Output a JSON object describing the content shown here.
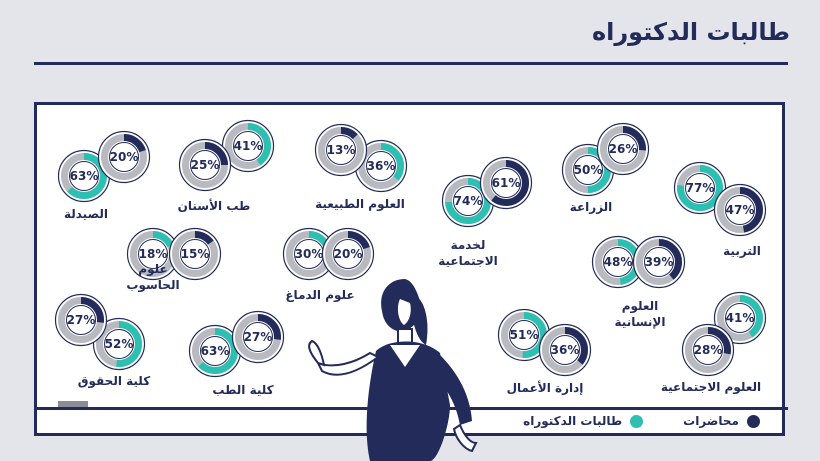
{
  "page": {
    "title": "طالبات الدكتوراه"
  },
  "legend": {
    "items": [
      {
        "label": "محاضرات",
        "color": "#222b5a"
      },
      {
        "label": "طالبات الدكتوراه",
        "color": "#2dbfb1"
      }
    ]
  },
  "colors": {
    "navy": "#222b5a",
    "teal": "#2dbfb1",
    "track": "#b9bac0"
  },
  "chart_data": {
    "type": "pie",
    "units": "%",
    "series": [
      {
        "name": "محاضرات",
        "color": "#222b5a"
      },
      {
        "name": "طالبات الدكتوراه",
        "color": "#2dbfb1"
      }
    ],
    "categories": [
      {
        "label": "الصيدلة",
        "lines": [
          "الصيدلة"
        ],
        "lecturers": 20,
        "students": 63
      },
      {
        "label": "طب الأسنان",
        "lines": [
          "طب الأسنان"
        ],
        "lecturers": 25,
        "students": 41
      },
      {
        "label": "العلوم الطبيعية",
        "lines": [
          "العلوم الطبيعية"
        ],
        "lecturers": 13,
        "students": 36
      },
      {
        "label": "لخدمة الاجتماعية",
        "lines": [
          "لخدمة",
          "الاجتماعية"
        ],
        "lecturers": 61,
        "students": 74
      },
      {
        "label": "الزراعة",
        "lines": [
          "الزراعة"
        ],
        "lecturers": 26,
        "students": 50
      },
      {
        "label": "التربية",
        "lines": [
          "التربية"
        ],
        "lecturers": 47,
        "students": 77
      },
      {
        "label": "علوم الحاسوب",
        "lines": [
          "علوم",
          "الحاسوب"
        ],
        "lecturers": 15,
        "students": 18
      },
      {
        "label": "علوم الدماغ",
        "lines": [
          "علوم الدماغ"
        ],
        "lecturers": 20,
        "students": 30
      },
      {
        "label": "العلوم الإنسانية",
        "lines": [
          "العلوم",
          "الإنسانية"
        ],
        "lecturers": 39,
        "students": 48
      },
      {
        "label": "كلية الحقوق",
        "lines": [
          "كلية الحقوق"
        ],
        "lecturers": 27,
        "students": 52
      },
      {
        "label": "كلية الطب",
        "lines": [
          "كلية الطب"
        ],
        "lecturers": 27,
        "students": 63
      },
      {
        "label": "إدارة الأعمال",
        "lines": [
          "إدارة الأعمال"
        ],
        "lecturers": 36,
        "students": 51
      },
      {
        "label": "العلوم الاجتماعية",
        "lines": [
          "العلوم الاجتماعية"
        ],
        "lecturers": 28,
        "students": 41
      }
    ]
  }
}
